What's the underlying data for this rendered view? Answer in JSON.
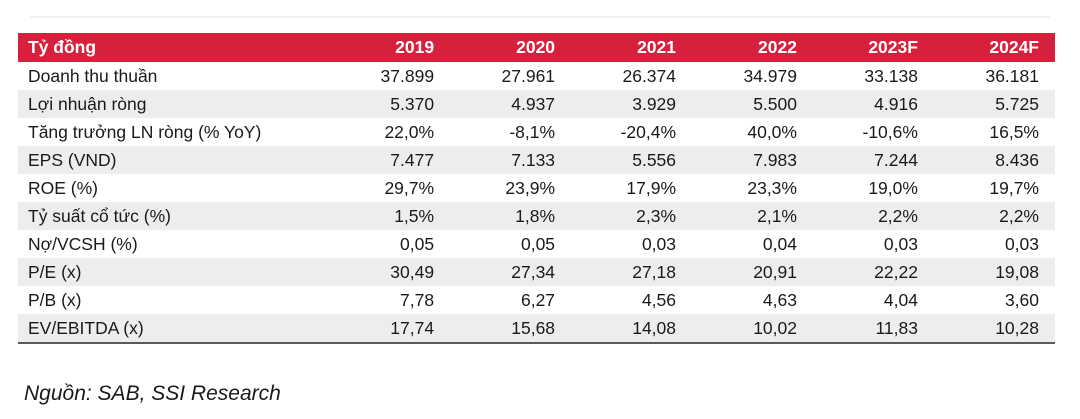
{
  "table": {
    "unit_label": "Tỷ đồng",
    "years": [
      "2019",
      "2020",
      "2021",
      "2022",
      "2023F",
      "2024F"
    ],
    "rows": [
      {
        "label": "Doanh thu thuần",
        "values": [
          "37.899",
          "27.961",
          "26.374",
          "34.979",
          "33.138",
          "36.181"
        ]
      },
      {
        "label": "Lợi nhuận ròng",
        "values": [
          "5.370",
          "4.937",
          "3.929",
          "5.500",
          "4.916",
          "5.725"
        ]
      },
      {
        "label": "Tăng trưởng LN ròng (% YoY)",
        "values": [
          "22,0%",
          "-8,1%",
          "-20,4%",
          "40,0%",
          "-10,6%",
          "16,5%"
        ]
      },
      {
        "label": "EPS (VND)",
        "values": [
          "7.477",
          "7.133",
          "5.556",
          "7.983",
          "7.244",
          "8.436"
        ]
      },
      {
        "label": "ROE (%)",
        "values": [
          "29,7%",
          "23,9%",
          "17,9%",
          "23,3%",
          "19,0%",
          "19,7%"
        ]
      },
      {
        "label": "Tỷ suất cổ tức (%)",
        "values": [
          "1,5%",
          "1,8%",
          "2,3%",
          "2,1%",
          "2,2%",
          "2,2%"
        ]
      },
      {
        "label": "Nợ/VCSH (%)",
        "values": [
          "0,05",
          "0,05",
          "0,03",
          "0,04",
          "0,03",
          "0,03"
        ]
      },
      {
        "label": "P/E (x)",
        "values": [
          "30,49",
          "27,34",
          "27,18",
          "20,91",
          "22,22",
          "19,08"
        ]
      },
      {
        "label": "P/B (x)",
        "values": [
          "7,78",
          "6,27",
          "4,56",
          "4,63",
          "4,04",
          "3,60"
        ]
      },
      {
        "label": "EV/EBITDA (x)",
        "values": [
          "17,74",
          "15,68",
          "14,08",
          "10,02",
          "11,83",
          "10,28"
        ]
      }
    ],
    "source_note": "Nguồn: SAB, SSI Research"
  },
  "colors": {
    "header_bg": "#d6203c",
    "header_text": "#ffffff",
    "stripe_bg": "#ededed",
    "body_text": "#1a1a1a",
    "bottom_border": "#595a5c"
  },
  "chart_data": {
    "type": "table",
    "title": "Tỷ đồng",
    "categories": [
      "2019",
      "2020",
      "2021",
      "2022",
      "2023F",
      "2024F"
    ],
    "series": [
      {
        "name": "Doanh thu thuần",
        "values": [
          37899,
          27961,
          26374,
          34979,
          33138,
          36181
        ]
      },
      {
        "name": "Lợi nhuận ròng",
        "values": [
          5370,
          4937,
          3929,
          5500,
          4916,
          5725
        ]
      },
      {
        "name": "Tăng trưởng LN ròng (% YoY)",
        "values": [
          22.0,
          -8.1,
          -20.4,
          40.0,
          -10.6,
          16.5
        ]
      },
      {
        "name": "EPS (VND)",
        "values": [
          7477,
          7133,
          5556,
          7983,
          7244,
          8436
        ]
      },
      {
        "name": "ROE (%)",
        "values": [
          29.7,
          23.9,
          17.9,
          23.3,
          19.0,
          19.7
        ]
      },
      {
        "name": "Tỷ suất cổ tức (%)",
        "values": [
          1.5,
          1.8,
          2.3,
          2.1,
          2.2,
          2.2
        ]
      },
      {
        "name": "Nợ/VCSH (%)",
        "values": [
          0.05,
          0.05,
          0.03,
          0.04,
          0.03,
          0.03
        ]
      },
      {
        "name": "P/E (x)",
        "values": [
          30.49,
          27.34,
          27.18,
          20.91,
          22.22,
          19.08
        ]
      },
      {
        "name": "P/B (x)",
        "values": [
          7.78,
          6.27,
          4.56,
          4.63,
          4.04,
          3.6
        ]
      },
      {
        "name": "EV/EBITDA (x)",
        "values": [
          17.74,
          15.68,
          14.08,
          10.02,
          11.83,
          10.28
        ]
      }
    ]
  }
}
